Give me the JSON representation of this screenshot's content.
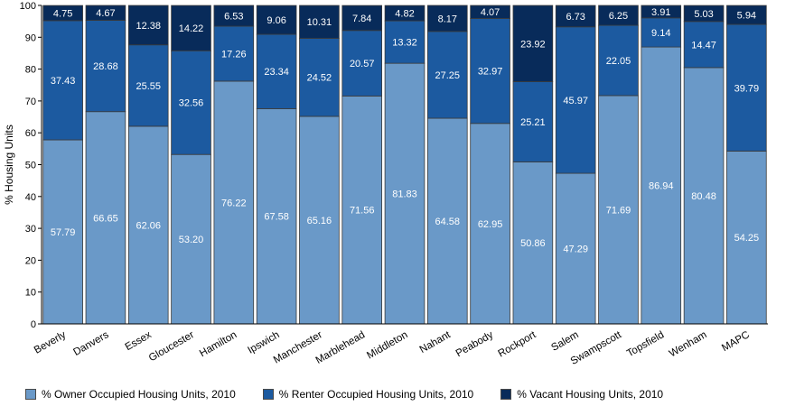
{
  "chart_data": {
    "type": "bar",
    "stacked": true,
    "title": "",
    "xlabel": "",
    "ylabel": "% Housing Units",
    "ylim": [
      0,
      100
    ],
    "yticks": [
      0,
      10,
      20,
      30,
      40,
      50,
      60,
      70,
      80,
      90,
      100
    ],
    "grid": false,
    "legend_position": "bottom",
    "categories": [
      "Beverly",
      "Danvers",
      "Essex",
      "Gloucester",
      "Hamilton",
      "Ipswich",
      "Manchester",
      "Marblehead",
      "Middleton",
      "Nahant",
      "Peabody",
      "Rockport",
      "Salem",
      "Swampscott",
      "Topsfield",
      "Wenham",
      "MAPC"
    ],
    "series": [
      {
        "name": "% Owner Occupied Housing Units, 2010",
        "color": "#6a99c8",
        "values": [
          57.79,
          66.65,
          62.06,
          53.2,
          76.22,
          67.58,
          65.16,
          71.56,
          81.83,
          64.58,
          62.95,
          50.86,
          47.29,
          71.69,
          86.94,
          80.48,
          54.25
        ],
        "labels": [
          "57.79",
          "66.65",
          "62.06",
          "53.20",
          "76.22",
          "67.58",
          "65.16",
          "71.56",
          "81.83",
          "64.58",
          "62.95",
          "50.86",
          "47.29",
          "71.69",
          "86.94",
          "80.48",
          "54.25"
        ]
      },
      {
        "name": "% Renter Occupied Housing Units, 2010",
        "color": "#1c5aa0",
        "values": [
          37.43,
          28.68,
          25.55,
          32.56,
          17.26,
          23.34,
          24.52,
          20.57,
          13.32,
          27.25,
          32.97,
          25.21,
          45.97,
          22.05,
          9.14,
          14.47,
          39.79
        ],
        "labels": [
          "37.43",
          "28.68",
          "25.55",
          "32.56",
          "17.26",
          "23.34",
          "24.52",
          "20.57",
          "13.32",
          "27.25",
          "32.97",
          "25.21",
          "45.97",
          "22.05",
          "9.14",
          "14.47",
          "39.79"
        ]
      },
      {
        "name": "% Vacant Housing Units, 2010",
        "color": "#082b5a",
        "values": [
          4.75,
          4.67,
          12.38,
          14.22,
          6.53,
          9.06,
          10.31,
          7.84,
          4.82,
          8.17,
          4.07,
          23.92,
          6.73,
          6.25,
          3.91,
          5.03,
          5.94
        ],
        "labels": [
          "4.75",
          "4.67",
          "12.38",
          "14.22",
          "6.53",
          "9.06",
          "10.31",
          "7.84",
          "4.82",
          "8.17",
          "4.07",
          "23.92",
          "6.73",
          "6.25",
          "3.91",
          "5.03",
          "5.94"
        ]
      }
    ]
  }
}
